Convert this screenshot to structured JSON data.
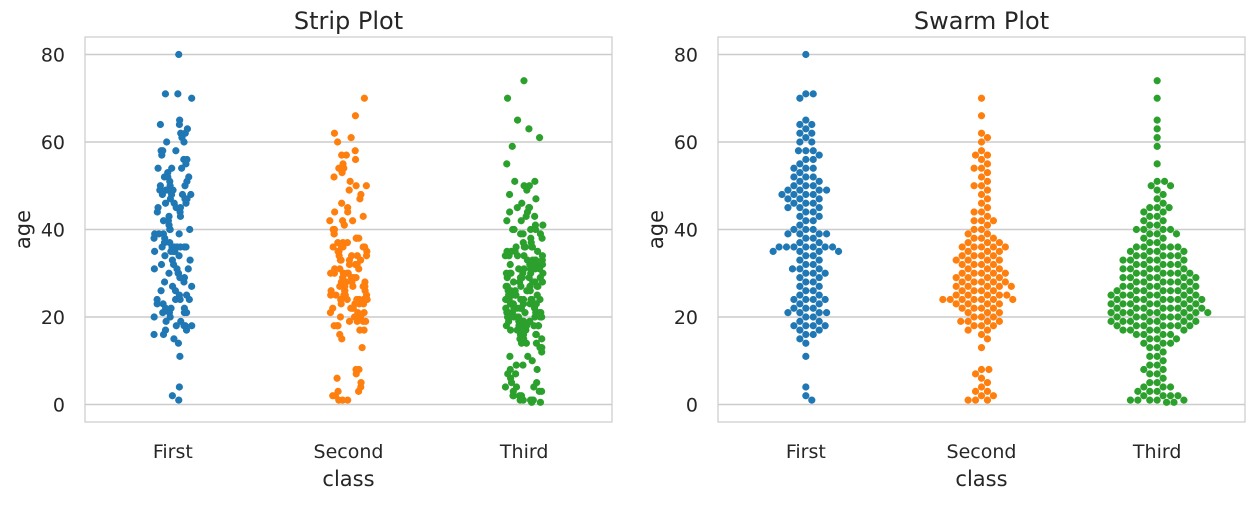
{
  "chart_data": [
    {
      "type": "scatter",
      "variant": "strip",
      "title": "Strip Plot",
      "xlabel": "class",
      "ylabel": "age",
      "categories": [
        "First",
        "Second",
        "Third"
      ],
      "yticks": [
        0,
        20,
        40,
        60,
        80
      ],
      "ylim": [
        -4,
        84
      ],
      "grid": "y",
      "colors": [
        "#1f77b4",
        "#ff7f0e",
        "#2ca02c"
      ],
      "series": [
        {
          "category": "First",
          "values": [
            80,
            71,
            71,
            70,
            65,
            64,
            64,
            63,
            62,
            62,
            61,
            60,
            60,
            58,
            58,
            58,
            57,
            56,
            56,
            55,
            54,
            54,
            54,
            53,
            52,
            52,
            52,
            51,
            51,
            50,
            50,
            50,
            49,
            49,
            49,
            49,
            48,
            48,
            48,
            48,
            47,
            47,
            47,
            46,
            46,
            46,
            45,
            45,
            45,
            44,
            44,
            43,
            43,
            42,
            42,
            41,
            40,
            40,
            40,
            39,
            39,
            39,
            39,
            38,
            38,
            37,
            37,
            36,
            36,
            36,
            36,
            36,
            36,
            36,
            35,
            35,
            35,
            35,
            34,
            34,
            33,
            33,
            32,
            32,
            31,
            31,
            31,
            30,
            30,
            30,
            29,
            29,
            28,
            28,
            27,
            27,
            26,
            26,
            25,
            25,
            24,
            24,
            24,
            24,
            23,
            23,
            22,
            22,
            22,
            21,
            21,
            21,
            21,
            20,
            20,
            19,
            19,
            18,
            18,
            18,
            18,
            17,
            17,
            16,
            16,
            15,
            14,
            11,
            4,
            2,
            1
          ]
        },
        {
          "category": "Second",
          "values": [
            70,
            66,
            62,
            61,
            60,
            58,
            57,
            57,
            56,
            55,
            54,
            54,
            53,
            52,
            51,
            50,
            50,
            49,
            48,
            47,
            46,
            45,
            44,
            44,
            43,
            42,
            42,
            42,
            41,
            40,
            40,
            39,
            39,
            38,
            38,
            38,
            37,
            37,
            37,
            36,
            36,
            36,
            36,
            36,
            35,
            35,
            35,
            34,
            34,
            34,
            34,
            33,
            33,
            33,
            33,
            32,
            32,
            32,
            32,
            31,
            31,
            31,
            30,
            30,
            30,
            30,
            30,
            29,
            29,
            29,
            29,
            28,
            28,
            28,
            28,
            28,
            27,
            27,
            27,
            27,
            27,
            26,
            26,
            26,
            26,
            25,
            25,
            25,
            25,
            25,
            24,
            24,
            24,
            24,
            24,
            24,
            24,
            23,
            23,
            23,
            23,
            22,
            22,
            22,
            22,
            21,
            21,
            21,
            20,
            20,
            20,
            19,
            19,
            19,
            19,
            18,
            18,
            18,
            17,
            17,
            16,
            15,
            13,
            8,
            8,
            7,
            6,
            5,
            4,
            3,
            3,
            2,
            2,
            1,
            1,
            1
          ]
        },
        {
          "category": "Third",
          "values": [
            74,
            70,
            65,
            63,
            61,
            59,
            55,
            51,
            51,
            50,
            50,
            49,
            48,
            47,
            46,
            45,
            45,
            45,
            44,
            44,
            43,
            43,
            42,
            42,
            41,
            41,
            40,
            40,
            40,
            40,
            39,
            39,
            39,
            38,
            38,
            37,
            37,
            36,
            36,
            36,
            36,
            36,
            35,
            35,
            35,
            35,
            34,
            34,
            34,
            34,
            34,
            33,
            33,
            33,
            33,
            33,
            32,
            32,
            32,
            32,
            32,
            31,
            31,
            31,
            31,
            31,
            30,
            30,
            30,
            30,
            30,
            30,
            29,
            29,
            29,
            29,
            29,
            29,
            28,
            28,
            28,
            28,
            28,
            28,
            27,
            27,
            27,
            27,
            27,
            27,
            26,
            26,
            26,
            26,
            26,
            26,
            26,
            25,
            25,
            25,
            25,
            25,
            25,
            25,
            24,
            24,
            24,
            24,
            24,
            24,
            24,
            24,
            23,
            23,
            23,
            23,
            23,
            23,
            23,
            22,
            22,
            22,
            22,
            22,
            22,
            22,
            22,
            21,
            21,
            21,
            21,
            21,
            21,
            21,
            21,
            20,
            20,
            20,
            20,
            20,
            20,
            20,
            19,
            19,
            19,
            19,
            19,
            19,
            19,
            18,
            18,
            18,
            18,
            18,
            18,
            18,
            17,
            17,
            17,
            17,
            17,
            16,
            16,
            16,
            16,
            15,
            15,
            15,
            14,
            14,
            14,
            13,
            13,
            12,
            11,
            11,
            10,
            9,
            9,
            8,
            8,
            7,
            7,
            6,
            5,
            5,
            4,
            4,
            4,
            3,
            3,
            3,
            2,
            2,
            2,
            2,
            1,
            1,
            1,
            1,
            1,
            0.5,
            0.5
          ]
        }
      ]
    },
    {
      "type": "scatter",
      "variant": "swarm",
      "title": "Swarm Plot",
      "xlabel": "class",
      "ylabel": "age",
      "categories": [
        "First",
        "Second",
        "Third"
      ],
      "yticks": [
        0,
        20,
        40,
        60,
        80
      ],
      "ylim": [
        -4,
        84
      ],
      "grid": "y",
      "colors": [
        "#1f77b4",
        "#ff7f0e",
        "#2ca02c"
      ],
      "series": [
        {
          "category": "First",
          "values": [
            80,
            71,
            71,
            70,
            65,
            64,
            64,
            63,
            62,
            62,
            61,
            60,
            60,
            58,
            58,
            58,
            57,
            56,
            56,
            55,
            54,
            54,
            54,
            53,
            52,
            52,
            52,
            51,
            51,
            50,
            50,
            50,
            49,
            49,
            49,
            49,
            48,
            48,
            48,
            48,
            47,
            47,
            47,
            46,
            46,
            46,
            45,
            45,
            45,
            44,
            44,
            43,
            43,
            42,
            42,
            41,
            40,
            40,
            40,
            39,
            39,
            39,
            39,
            38,
            38,
            37,
            37,
            36,
            36,
            36,
            36,
            36,
            36,
            36,
            35,
            35,
            35,
            35,
            34,
            34,
            33,
            33,
            32,
            32,
            31,
            31,
            31,
            30,
            30,
            30,
            29,
            29,
            28,
            28,
            27,
            27,
            26,
            26,
            25,
            25,
            24,
            24,
            24,
            24,
            23,
            23,
            22,
            22,
            22,
            21,
            21,
            21,
            21,
            20,
            20,
            19,
            19,
            18,
            18,
            18,
            18,
            17,
            17,
            16,
            16,
            15,
            14,
            11,
            4,
            2,
            1
          ]
        },
        {
          "category": "Second",
          "values": [
            70,
            66,
            62,
            61,
            60,
            58,
            57,
            57,
            56,
            55,
            54,
            54,
            53,
            52,
            51,
            50,
            50,
            49,
            48,
            47,
            46,
            45,
            44,
            44,
            43,
            42,
            42,
            42,
            41,
            40,
            40,
            39,
            39,
            38,
            38,
            38,
            37,
            37,
            37,
            36,
            36,
            36,
            36,
            36,
            35,
            35,
            35,
            34,
            34,
            34,
            34,
            33,
            33,
            33,
            33,
            32,
            32,
            32,
            32,
            31,
            31,
            31,
            30,
            30,
            30,
            30,
            30,
            29,
            29,
            29,
            29,
            28,
            28,
            28,
            28,
            28,
            27,
            27,
            27,
            27,
            27,
            26,
            26,
            26,
            26,
            25,
            25,
            25,
            25,
            25,
            24,
            24,
            24,
            24,
            24,
            24,
            24,
            23,
            23,
            23,
            23,
            22,
            22,
            22,
            22,
            21,
            21,
            21,
            20,
            20,
            20,
            19,
            19,
            19,
            19,
            18,
            18,
            18,
            17,
            17,
            16,
            15,
            13,
            8,
            8,
            7,
            6,
            5,
            4,
            3,
            3,
            2,
            2,
            1,
            1,
            1
          ]
        },
        {
          "category": "Third",
          "values": [
            74,
            70,
            65,
            63,
            61,
            59,
            55,
            51,
            51,
            50,
            50,
            49,
            48,
            47,
            46,
            45,
            45,
            45,
            44,
            44,
            43,
            43,
            42,
            42,
            41,
            41,
            40,
            40,
            40,
            40,
            39,
            39,
            39,
            38,
            38,
            37,
            37,
            36,
            36,
            36,
            36,
            36,
            35,
            35,
            35,
            35,
            34,
            34,
            34,
            34,
            34,
            33,
            33,
            33,
            33,
            33,
            32,
            32,
            32,
            32,
            32,
            31,
            31,
            31,
            31,
            31,
            30,
            30,
            30,
            30,
            30,
            30,
            29,
            29,
            29,
            29,
            29,
            29,
            28,
            28,
            28,
            28,
            28,
            28,
            27,
            27,
            27,
            27,
            27,
            27,
            26,
            26,
            26,
            26,
            26,
            26,
            26,
            25,
            25,
            25,
            25,
            25,
            25,
            25,
            24,
            24,
            24,
            24,
            24,
            24,
            24,
            24,
            23,
            23,
            23,
            23,
            23,
            23,
            23,
            22,
            22,
            22,
            22,
            22,
            22,
            22,
            22,
            21,
            21,
            21,
            21,
            21,
            21,
            21,
            21,
            20,
            20,
            20,
            20,
            20,
            20,
            20,
            19,
            19,
            19,
            19,
            19,
            19,
            19,
            18,
            18,
            18,
            18,
            18,
            18,
            18,
            17,
            17,
            17,
            17,
            17,
            16,
            16,
            16,
            16,
            15,
            15,
            15,
            14,
            14,
            14,
            13,
            13,
            12,
            11,
            11,
            10,
            9,
            9,
            8,
            8,
            7,
            7,
            6,
            5,
            5,
            4,
            4,
            4,
            3,
            3,
            3,
            2,
            2,
            2,
            2,
            1,
            1,
            1,
            1,
            1,
            0.5,
            0.5
          ]
        }
      ]
    }
  ]
}
